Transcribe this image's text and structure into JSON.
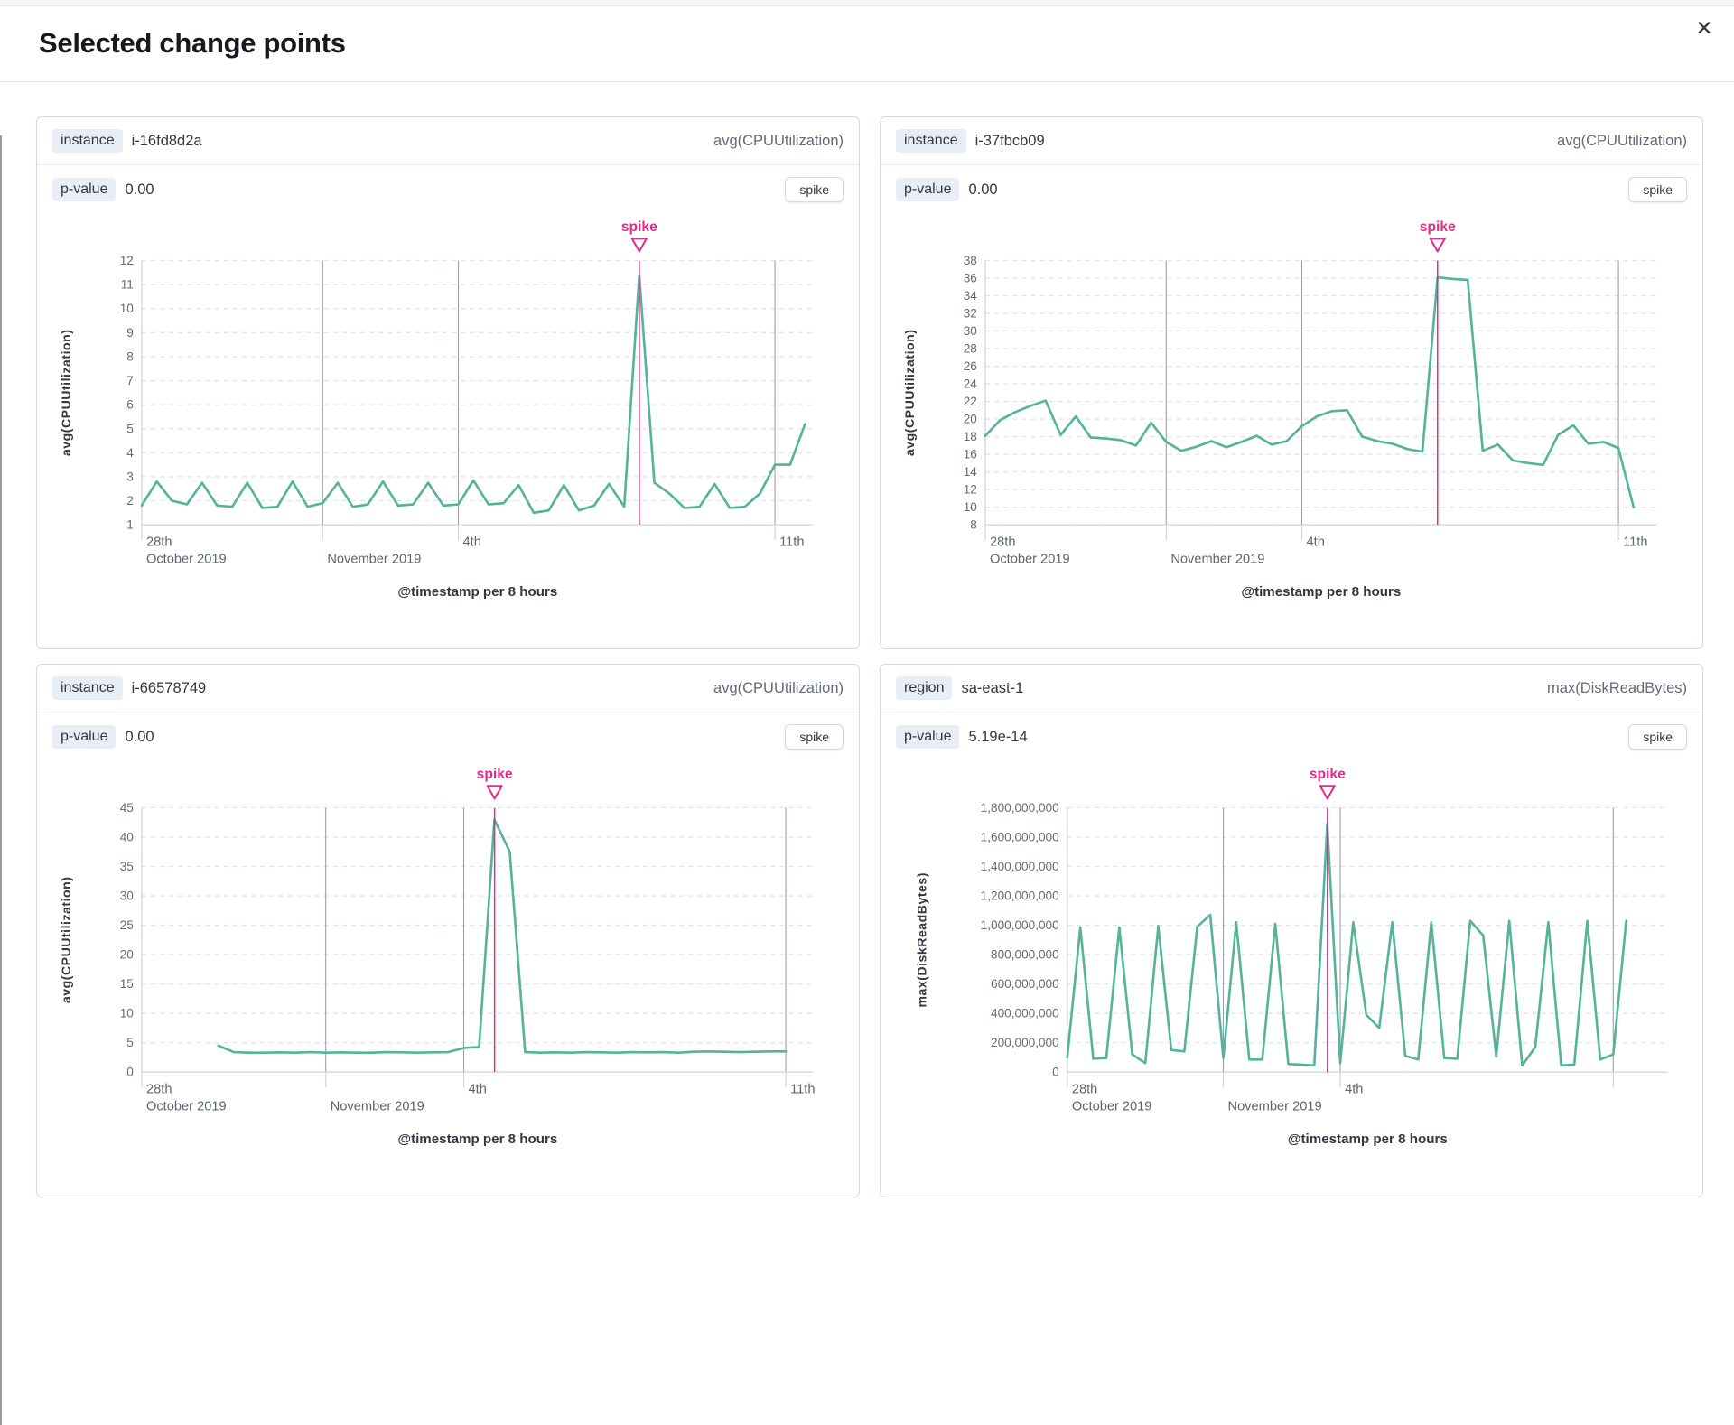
{
  "modal": {
    "title": "Selected change points",
    "close_icon": "✕"
  },
  "colors": {
    "accent": "#e7298a",
    "line": "#54b399",
    "vgrid": "#9aa0ab",
    "hgrid": "#e0e4ec",
    "axis": "#cfd6e0",
    "tick_text": "#5d6470"
  },
  "panels": [
    {
      "field_badge": "instance",
      "field_value": "i-16fd8d2a",
      "agg": "avg(CPUUtilization)",
      "pvalue_label": "p-value",
      "pvalue": "0.00",
      "change_type": "spike"
    },
    {
      "field_badge": "instance",
      "field_value": "i-37fbcb09",
      "agg": "avg(CPUUtilization)",
      "pvalue_label": "p-value",
      "pvalue": "0.00",
      "change_type": "spike"
    },
    {
      "field_badge": "instance",
      "field_value": "i-66578749",
      "agg": "avg(CPUUtilization)",
      "pvalue_label": "p-value",
      "pvalue": "0.00",
      "change_type": "spike"
    },
    {
      "field_badge": "region",
      "field_value": "sa-east-1",
      "agg": "max(DiskReadBytes)",
      "pvalue_label": "p-value",
      "pvalue": "5.19e-14",
      "change_type": "spike"
    }
  ],
  "chart_data": [
    {
      "type": "line",
      "ylabel": "avg(CPUUtilization)",
      "xlabel": "@timestamp per 8 hours",
      "annotation": "spike",
      "ylim": [
        1,
        12
      ],
      "ystep": 1,
      "y_format": "plain",
      "x_start_day": 0,
      "x_step_days": 0.33333,
      "xmax_day": 14.85,
      "x_ticks": [
        {
          "day": 0,
          "line1": "28th",
          "line2": "October 2019"
        },
        {
          "day": 4,
          "line1": "",
          "line2": "November 2019"
        },
        {
          "day": 7,
          "line1": "4th",
          "line2": ""
        },
        {
          "day": 14,
          "line1": "11th",
          "line2": ""
        }
      ],
      "vgrid_days": [
        4,
        7,
        14
      ],
      "spike_day": 11,
      "values": [
        1.8,
        2.8,
        2.0,
        1.85,
        2.75,
        1.8,
        1.75,
        2.75,
        1.7,
        1.75,
        2.8,
        1.75,
        1.9,
        2.75,
        1.75,
        1.85,
        2.8,
        1.8,
        1.85,
        2.75,
        1.8,
        1.85,
        2.85,
        1.85,
        1.9,
        2.65,
        1.5,
        1.6,
        2.65,
        1.6,
        1.8,
        2.7,
        1.75,
        11.4,
        2.75,
        2.3,
        1.7,
        1.75,
        2.7,
        1.7,
        1.75,
        2.3,
        3.5,
        3.5,
        5.2
      ]
    },
    {
      "type": "line",
      "ylabel": "avg(CPUUtilization)",
      "xlabel": "@timestamp per 8 hours",
      "annotation": "spike",
      "ylim": [
        8,
        38
      ],
      "ystep": 2,
      "y_format": "plain",
      "x_start_day": 0,
      "x_step_days": 0.33333,
      "xmax_day": 14.85,
      "x_ticks": [
        {
          "day": 0,
          "line1": "28th",
          "line2": "October 2019"
        },
        {
          "day": 4,
          "line1": "",
          "line2": "November 2019"
        },
        {
          "day": 7,
          "line1": "4th",
          "line2": ""
        },
        {
          "day": 14,
          "line1": "11th",
          "line2": ""
        }
      ],
      "vgrid_days": [
        4,
        7,
        14
      ],
      "spike_day": 10,
      "values": [
        18.1,
        19.9,
        20.8,
        21.5,
        22.1,
        18.2,
        20.3,
        17.9,
        17.8,
        17.6,
        17.0,
        19.6,
        17.4,
        16.4,
        16.85,
        17.5,
        16.8,
        17.4,
        18.1,
        17.1,
        17.5,
        19.2,
        20.3,
        20.9,
        21.0,
        18.0,
        17.5,
        17.2,
        16.6,
        16.3,
        36.1,
        35.9,
        35.8,
        16.4,
        17.1,
        15.3,
        15.0,
        14.8,
        18.2,
        19.3,
        17.2,
        17.4,
        16.7,
        10.0
      ]
    },
    {
      "type": "line",
      "ylabel": "avg(CPUUtilization)",
      "xlabel": "@timestamp per 8 hours",
      "annotation": "spike",
      "ylim": [
        0,
        45
      ],
      "ystep": 5,
      "y_format": "plain",
      "x_start_day": 1.6667,
      "x_step_days": 0.33333,
      "xmax_day": 14.6,
      "x_ticks": [
        {
          "day": 0,
          "line1": "28th",
          "line2": "October 2019"
        },
        {
          "day": 4,
          "line1": "",
          "line2": "November 2019"
        },
        {
          "day": 7,
          "line1": "4th",
          "line2": ""
        },
        {
          "day": 14,
          "line1": "11th",
          "line2": ""
        }
      ],
      "vgrid_days": [
        4,
        7,
        14
      ],
      "spike_day": 7.67,
      "values": [
        4.5,
        3.4,
        3.3,
        3.3,
        3.35,
        3.3,
        3.4,
        3.3,
        3.35,
        3.3,
        3.3,
        3.4,
        3.35,
        3.3,
        3.35,
        3.4,
        4.1,
        4.25,
        43.0,
        37.5,
        3.4,
        3.3,
        3.35,
        3.3,
        3.4,
        3.35,
        3.3,
        3.4,
        3.35,
        3.4,
        3.3,
        3.45,
        3.5,
        3.45,
        3.4,
        3.45,
        3.5,
        3.5
      ]
    },
    {
      "type": "line",
      "ylabel": "max(DiskReadBytes)",
      "xlabel": "@timestamp per 8 hours",
      "annotation": "spike",
      "ylim": [
        0,
        1800000000
      ],
      "ystep": 200000000,
      "y_format": "comma",
      "x_start_day": 0,
      "x_step_days": 0.33333,
      "xmax_day": 15.4,
      "x_ticks": [
        {
          "day": 0,
          "line1": "28th",
          "line2": "October 2019"
        },
        {
          "day": 4,
          "line1": "",
          "line2": "November 2019"
        },
        {
          "day": 7,
          "line1": "4th",
          "line2": ""
        },
        {
          "day": 14,
          "line1": "",
          "line2": ""
        }
      ],
      "vgrid_days": [
        4,
        7,
        14
      ],
      "spike_day": 6.67,
      "values": [
        100000000,
        985000000,
        90000000,
        95000000,
        985000000,
        120000000,
        60000000,
        995000000,
        150000000,
        140000000,
        990000000,
        1070000000,
        95000000,
        1020000000,
        85000000,
        85000000,
        1010000000,
        55000000,
        50000000,
        45000000,
        1690000000,
        60000000,
        1020000000,
        390000000,
        300000000,
        1020000000,
        110000000,
        85000000,
        1020000000,
        95000000,
        90000000,
        1030000000,
        930000000,
        105000000,
        1030000000,
        45000000,
        170000000,
        1020000000,
        45000000,
        50000000,
        1030000000,
        85000000,
        120000000,
        1030000000
      ]
    }
  ]
}
